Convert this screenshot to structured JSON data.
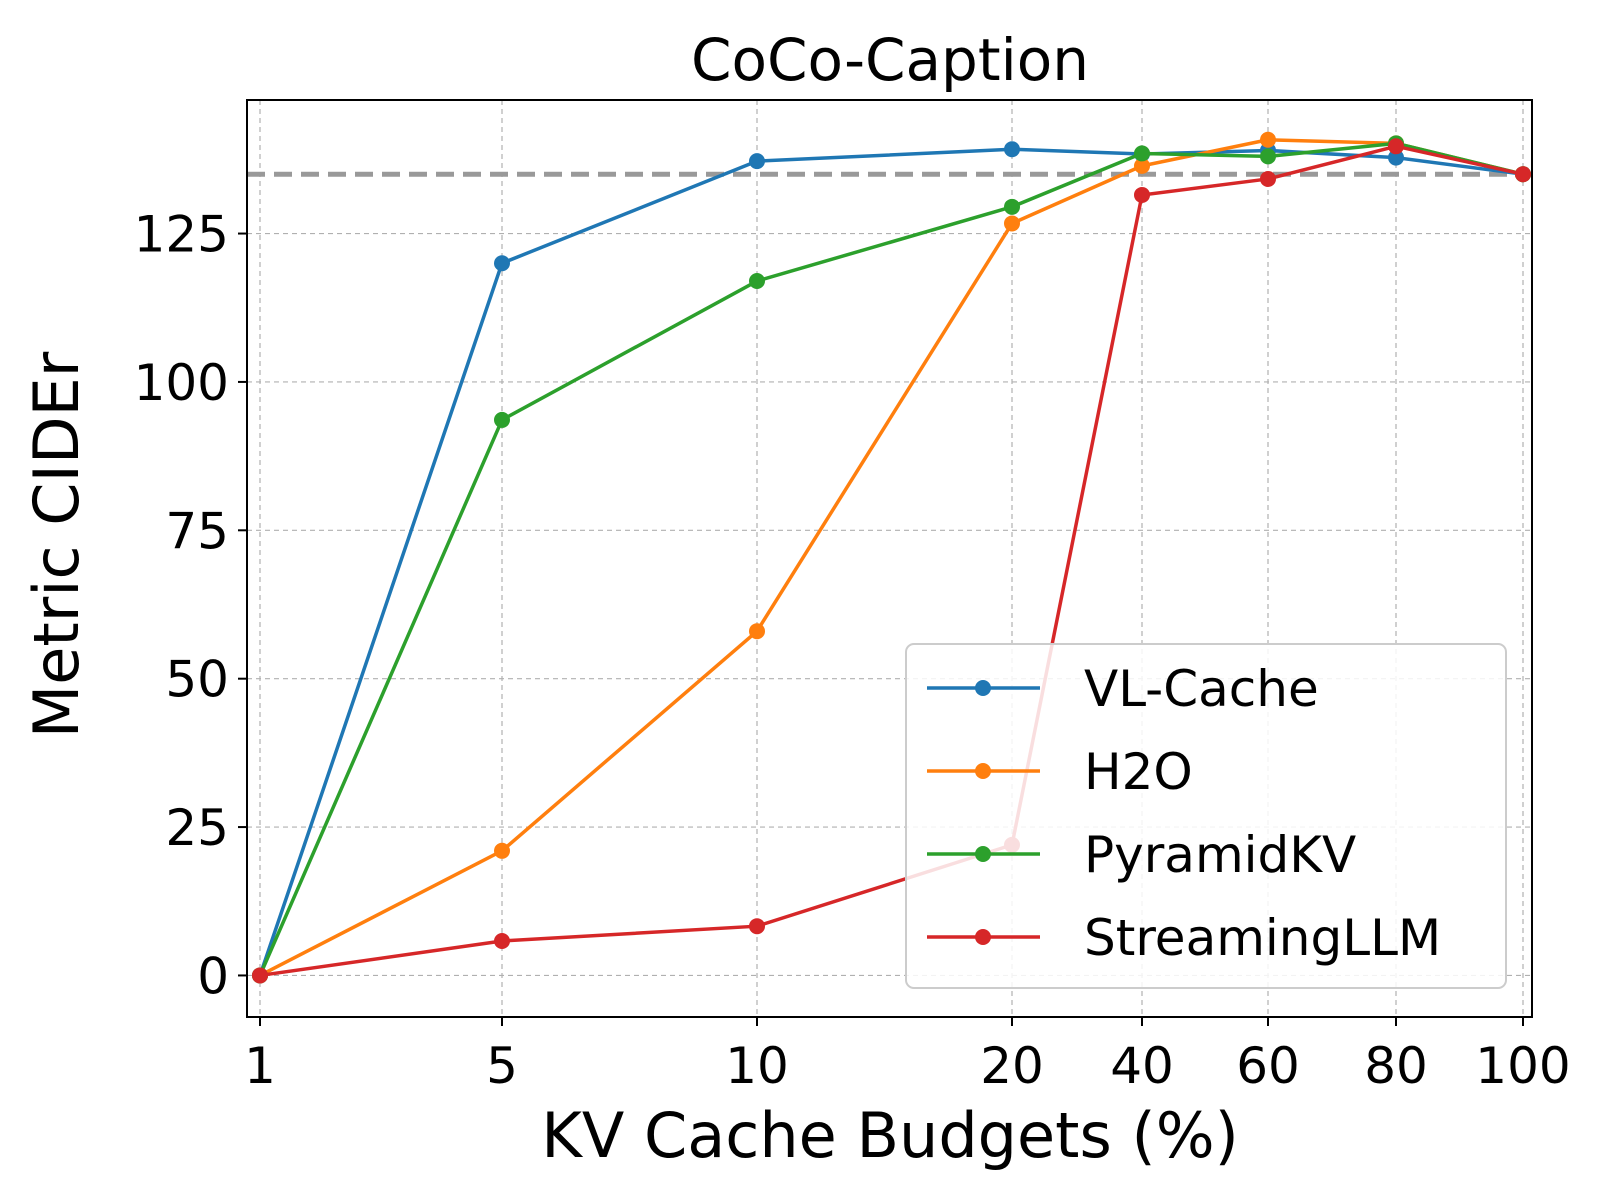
{
  "chart_data": {
    "type": "line",
    "title": "CoCo-Caption",
    "xlabel": "KV Cache Budgets (%)",
    "ylabel": "Metric CIDEr",
    "x": [
      1,
      5,
      10,
      20,
      40,
      60,
      80,
      100
    ],
    "x_tick_labels": [
      "1",
      "5",
      "10",
      "20",
      "40",
      "60",
      "80",
      "100"
    ],
    "y_ticks": [
      0,
      25,
      50,
      75,
      100,
      125
    ],
    "y_tick_labels": [
      "0",
      "25",
      "50",
      "75",
      "100",
      "125"
    ],
    "ylim": [
      -7,
      147.5
    ],
    "x_scale": "categorical (evenly spaced positions)",
    "grid": true,
    "legend_position": "lower-right",
    "reference_line": {
      "value": 135,
      "style": "dashed",
      "color": "#999999"
    },
    "series": [
      {
        "name": "VL-Cache",
        "color": "#1f77b4",
        "values": [
          0,
          120,
          137.2,
          139.2,
          138.4,
          139,
          137.8,
          135
        ]
      },
      {
        "name": "H2O",
        "color": "#ff7f0e",
        "values": [
          0,
          21,
          58,
          126.7,
          136.4,
          140.8,
          140.2,
          135
        ]
      },
      {
        "name": "PyramidKV",
        "color": "#2ca02c",
        "values": [
          0,
          93.6,
          117,
          129.5,
          138.5,
          138,
          140.2,
          135
        ]
      },
      {
        "name": "StreamingLLM",
        "color": "#d62728",
        "values": [
          0,
          5.8,
          8.3,
          22,
          131.5,
          134.2,
          139.7,
          135
        ]
      }
    ]
  }
}
